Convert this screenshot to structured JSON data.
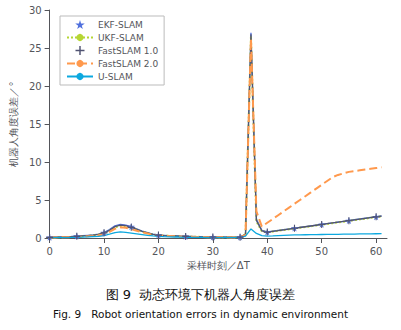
{
  "chart_data": {
    "type": "line",
    "title": "图 9  动态环境下机器人角度误差",
    "subtitle": "Fig. 9   Robot orientation errors in dynamic environment",
    "xlabel": "采样时刻／ΔT",
    "ylabel": "机器人角度误差／°",
    "xlim": [
      0,
      62
    ],
    "ylim": [
      0,
      30
    ],
    "xticks": [
      0,
      10,
      20,
      30,
      40,
      50,
      60
    ],
    "yticks": [
      0,
      5,
      10,
      15,
      20,
      25,
      30
    ],
    "grid": false,
    "legend": "upper left",
    "x": [
      0,
      1,
      2,
      3,
      4,
      5,
      6,
      7,
      8,
      9,
      10,
      11,
      12,
      13,
      14,
      15,
      16,
      17,
      18,
      19,
      20,
      21,
      22,
      23,
      24,
      25,
      26,
      27,
      28,
      29,
      30,
      31,
      32,
      33,
      34,
      35,
      36,
      37,
      38,
      39,
      40,
      41,
      42,
      43,
      44,
      45,
      46,
      47,
      48,
      49,
      50,
      51,
      52,
      53,
      54,
      55,
      56,
      57,
      58,
      59,
      60,
      61
    ],
    "series": [
      {
        "name": "EKF-SLAM",
        "line_style": "solid",
        "marker": "star",
        "values": [
          0.1,
          0.12,
          0.15,
          0.18,
          0.2,
          0.25,
          0.3,
          0.35,
          0.4,
          0.5,
          0.7,
          1.1,
          1.6,
          1.8,
          1.7,
          1.5,
          1.2,
          0.9,
          0.7,
          0.5,
          0.4,
          0.35,
          0.3,
          0.28,
          0.25,
          0.22,
          0.2,
          0.18,
          0.16,
          0.15,
          0.14,
          0.13,
          0.12,
          0.11,
          0.1,
          0.12,
          0.5,
          27.0,
          2.5,
          1.0,
          0.8,
          0.9,
          1.0,
          1.1,
          1.2,
          1.3,
          1.4,
          1.5,
          1.6,
          1.7,
          1.8,
          1.9,
          2.0,
          2.1,
          2.2,
          2.3,
          2.4,
          2.5,
          2.6,
          2.7,
          2.8,
          2.9
        ]
      },
      {
        "name": "UKF-SLAM",
        "line_style": "dotted",
        "values": [
          0.05,
          0.07,
          0.1,
          0.13,
          0.15,
          0.18,
          0.22,
          0.28,
          0.35,
          0.45,
          0.65,
          0.95,
          1.4,
          1.6,
          1.55,
          1.3,
          1.1,
          0.85,
          0.65,
          0.45,
          0.35,
          0.3,
          0.28,
          0.25,
          0.22,
          0.2,
          0.18,
          0.16,
          0.14,
          0.13,
          0.12,
          0.11,
          0.1,
          0.1,
          0.09,
          0.1,
          0.45,
          26.5,
          2.2,
          0.9,
          0.75,
          0.85,
          0.95,
          1.05,
          1.15,
          1.25,
          1.35,
          1.45,
          1.55,
          1.65,
          1.75,
          1.85,
          1.95,
          2.05,
          2.15,
          2.25,
          2.35,
          2.45,
          2.55,
          2.65,
          2.75,
          2.85
        ]
      },
      {
        "name": "FastSLAM 1.0",
        "line_style": "solid",
        "marker": "plus",
        "values": [
          0.08,
          0.1,
          0.12,
          0.15,
          0.18,
          0.22,
          0.28,
          0.32,
          0.38,
          0.48,
          0.68,
          1.0,
          1.5,
          1.7,
          1.62,
          1.4,
          1.15,
          0.88,
          0.68,
          0.48,
          0.38,
          0.32,
          0.28,
          0.26,
          0.23,
          0.21,
          0.19,
          0.17,
          0.15,
          0.14,
          0.13,
          0.12,
          0.11,
          0.1,
          0.09,
          0.11,
          0.48,
          26.8,
          2.3,
          0.95,
          0.78,
          0.88,
          0.98,
          1.08,
          1.18,
          1.28,
          1.38,
          1.48,
          1.58,
          1.68,
          1.78,
          1.88,
          1.98,
          2.08,
          2.18,
          2.28,
          2.38,
          2.48,
          2.58,
          2.68,
          2.78,
          2.88
        ]
      },
      {
        "name": "FastSLAM 2.0",
        "line_style": "dashed",
        "values": [
          0.05,
          0.06,
          0.08,
          0.1,
          0.12,
          0.15,
          0.18,
          0.22,
          0.28,
          0.35,
          0.5,
          0.8,
          1.2,
          1.4,
          1.35,
          1.15,
          0.95,
          0.75,
          0.58,
          0.42,
          0.32,
          0.28,
          0.25,
          0.22,
          0.2,
          0.18,
          0.16,
          0.14,
          0.12,
          0.11,
          0.1,
          0.09,
          0.09,
          0.08,
          0.08,
          0.09,
          0.4,
          26.2,
          3.5,
          1.5,
          2.0,
          2.5,
          3.0,
          3.5,
          4.0,
          4.5,
          5.0,
          5.5,
          6.0,
          6.5,
          7.0,
          7.5,
          8.0,
          8.3,
          8.5,
          8.7,
          8.8,
          8.9,
          9.0,
          9.1,
          9.2,
          9.3
        ]
      },
      {
        "name": "U-SLAM",
        "line_style": "solid",
        "values": [
          0.03,
          0.04,
          0.05,
          0.06,
          0.07,
          0.09,
          0.11,
          0.14,
          0.18,
          0.22,
          0.32,
          0.5,
          0.7,
          0.8,
          0.75,
          0.65,
          0.55,
          0.45,
          0.35,
          0.28,
          0.22,
          0.18,
          0.15,
          0.13,
          0.11,
          0.1,
          0.09,
          0.08,
          0.07,
          0.06,
          0.06,
          0.05,
          0.05,
          0.05,
          0.05,
          0.06,
          0.25,
          1.2,
          0.6,
          0.3,
          0.25,
          0.28,
          0.32,
          0.35,
          0.38,
          0.4,
          0.42,
          0.43,
          0.44,
          0.45,
          0.46,
          0.47,
          0.48,
          0.49,
          0.5,
          0.51,
          0.52,
          0.53,
          0.54,
          0.55,
          0.56,
          0.57
        ]
      }
    ]
  }
}
